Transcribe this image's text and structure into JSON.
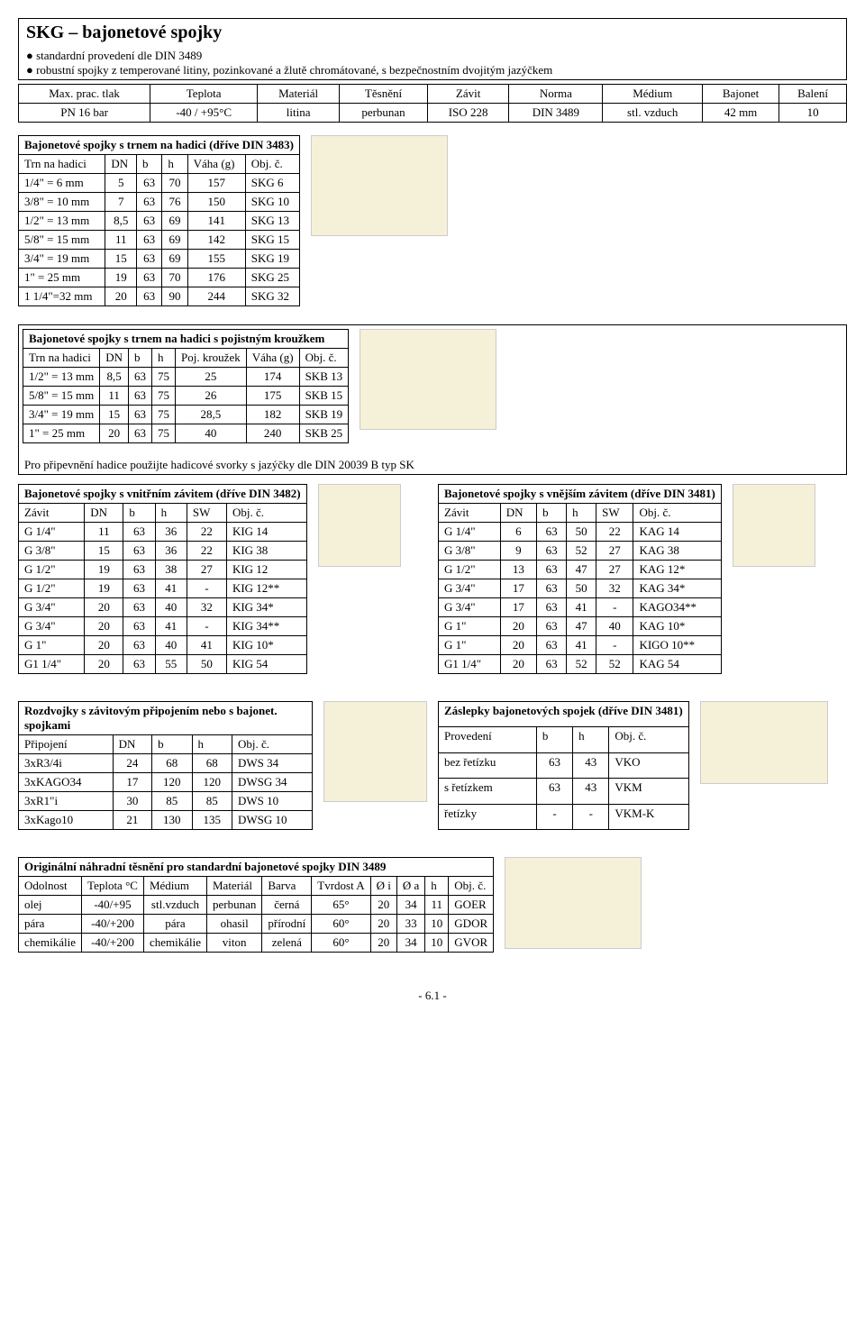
{
  "header": {
    "title": "SKG – bajonetové spojky",
    "bullet1": "● standardní provedení dle DIN 3489",
    "bullet2": "● robustní spojky z temperované litiny, pozinkované a žlutě chromátované, s bezpečnostním dvojitým jazýčkem"
  },
  "specs": {
    "headers": [
      "Max. prac. tlak",
      "Teplota",
      "Materiál",
      "Těsnění",
      "Závit",
      "Norma",
      "Médium",
      "Bajonet",
      "Balení"
    ],
    "values": [
      "PN 16 bar",
      "-40 / +95°C",
      "litina",
      "perbunan",
      "ISO 228",
      "DIN 3489",
      "stl. vzduch",
      "42 mm",
      "10"
    ]
  },
  "t1": {
    "title": "Bajonetové spojky s trnem na hadici (dříve DIN 3483)",
    "headers": [
      "Trn na hadici",
      "DN",
      "b",
      "h",
      "Váha (g)",
      "Obj. č."
    ],
    "rows": [
      [
        "1/4\" = 6 mm",
        "5",
        "63",
        "70",
        "157",
        "SKG 6"
      ],
      [
        "3/8\" = 10 mm",
        "7",
        "63",
        "76",
        "150",
        "SKG 10"
      ],
      [
        "1/2\" = 13 mm",
        "8,5",
        "63",
        "69",
        "141",
        "SKG 13"
      ],
      [
        "5/8\" = 15 mm",
        "11",
        "63",
        "69",
        "142",
        "SKG 15"
      ],
      [
        "3/4\" = 19 mm",
        "15",
        "63",
        "69",
        "155",
        "SKG 19"
      ],
      [
        "1\" = 25 mm",
        "19",
        "63",
        "70",
        "176",
        "SKG 25"
      ],
      [
        "1 1/4\"=32 mm",
        "20",
        "63",
        "90",
        "244",
        "SKG 32"
      ]
    ]
  },
  "t2": {
    "title": "Bajonetové spojky s trnem na hadici s pojistným kroužkem",
    "headers": [
      "Trn na hadici",
      "DN",
      "b",
      "h",
      "Poj. kroužek",
      "Váha (g)",
      "Obj. č."
    ],
    "rows": [
      [
        "1/2\" = 13 mm",
        "8,5",
        "63",
        "75",
        "25",
        "174",
        "SKB 13"
      ],
      [
        "5/8\" = 15 mm",
        "11",
        "63",
        "75",
        "26",
        "175",
        "SKB 15"
      ],
      [
        "3/4\" = 19 mm",
        "15",
        "63",
        "75",
        "28,5",
        "182",
        "SKB 19"
      ],
      [
        "1\" = 25 mm",
        "20",
        "63",
        "75",
        "40",
        "240",
        "SKB 25"
      ]
    ],
    "note": "Pro připevnění hadice použijte hadicové svorky s jazýčky dle DIN 20039 B typ SK"
  },
  "t3": {
    "title": "Bajonetové spojky s vnitřním závitem (dříve DIN 3482)",
    "headers": [
      "Závit",
      "DN",
      "b",
      "h",
      "SW",
      "Obj. č."
    ],
    "rows": [
      [
        "G 1/4\"",
        "11",
        "63",
        "36",
        "22",
        "KIG 14"
      ],
      [
        "G 3/8\"",
        "15",
        "63",
        "36",
        "22",
        "KIG 38"
      ],
      [
        "G 1/2\"",
        "19",
        "63",
        "38",
        "27",
        "KIG 12"
      ],
      [
        "G 1/2\"",
        "19",
        "63",
        "41",
        "-",
        "KIG 12**"
      ],
      [
        "G 3/4\"",
        "20",
        "63",
        "40",
        "32",
        "KIG 34*"
      ],
      [
        "G 3/4\"",
        "20",
        "63",
        "41",
        "-",
        "KIG 34**"
      ],
      [
        "G 1\"",
        "20",
        "63",
        "40",
        "41",
        "KIG 10*"
      ],
      [
        "G1 1/4\"",
        "20",
        "63",
        "55",
        "50",
        "KIG 54"
      ]
    ]
  },
  "t4": {
    "title": "Bajonetové spojky s vnějším závitem (dříve DIN 3481)",
    "headers": [
      "Závit",
      "DN",
      "b",
      "h",
      "SW",
      "Obj. č."
    ],
    "rows": [
      [
        "G 1/4\"",
        "6",
        "63",
        "50",
        "22",
        "KAG 14"
      ],
      [
        "G 3/8\"",
        "9",
        "63",
        "52",
        "27",
        "KAG 38"
      ],
      [
        "G 1/2\"",
        "13",
        "63",
        "47",
        "27",
        "KAG 12*"
      ],
      [
        "G 3/4\"",
        "17",
        "63",
        "50",
        "32",
        "KAG 34*"
      ],
      [
        "G 3/4\"",
        "17",
        "63",
        "41",
        "-",
        "KAGO34**"
      ],
      [
        "G 1\"",
        "20",
        "63",
        "47",
        "40",
        "KAG 10*"
      ],
      [
        "G 1\"",
        "20",
        "63",
        "41",
        "-",
        "KIGO 10**"
      ],
      [
        "G1 1/4\"",
        "20",
        "63",
        "52",
        "52",
        "KAG 54"
      ]
    ]
  },
  "t5": {
    "title": "Rozdvojky s závitovým připojením nebo s bajonet. spojkami",
    "headers": [
      "Připojení",
      "DN",
      "b",
      "h",
      "Obj. č."
    ],
    "rows": [
      [
        "3xR3/4i",
        "24",
        "68",
        "68",
        "DWS 34"
      ],
      [
        "3xKAGO34",
        "17",
        "120",
        "120",
        "DWSG 34"
      ],
      [
        "3xR1\"i",
        "30",
        "85",
        "85",
        "DWS 10"
      ],
      [
        "3xKago10",
        "21",
        "130",
        "135",
        "DWSG 10"
      ]
    ]
  },
  "t6": {
    "title": "Záslepky bajonetových spojek (dříve DIN 3481)",
    "headers": [
      "Provedení",
      "b",
      "h",
      "Obj. č."
    ],
    "rows": [
      [
        "bez řetízku",
        "63",
        "43",
        "VKO"
      ],
      [
        "s řetízkem",
        "63",
        "43",
        "VKM"
      ],
      [
        "řetízky",
        "-",
        "-",
        "VKM-K"
      ]
    ]
  },
  "t7": {
    "title": "Originální náhradní těsnění pro standardní bajonetové spojky DIN 3489",
    "headers": [
      "Odolnost",
      "Teplota °C",
      "Médium",
      "Materiál",
      "Barva",
      "Tvrdost A",
      "Ø i",
      "Ø a",
      "h",
      "Obj. č."
    ],
    "rows": [
      [
        "olej",
        "-40/+95",
        "stl.vzduch",
        "perbunan",
        "černá",
        "65°",
        "20",
        "34",
        "11",
        "GOER"
      ],
      [
        "pára",
        "-40/+200",
        "pára",
        "ohasil",
        "přírodní",
        "60°",
        "20",
        "33",
        "10",
        "GDOR"
      ],
      [
        "chemikálie",
        "-40/+200",
        "chemikálie",
        "viton",
        "zelená",
        "60°",
        "20",
        "34",
        "10",
        "GVOR"
      ]
    ]
  },
  "pagenum": "- 6.1 -"
}
